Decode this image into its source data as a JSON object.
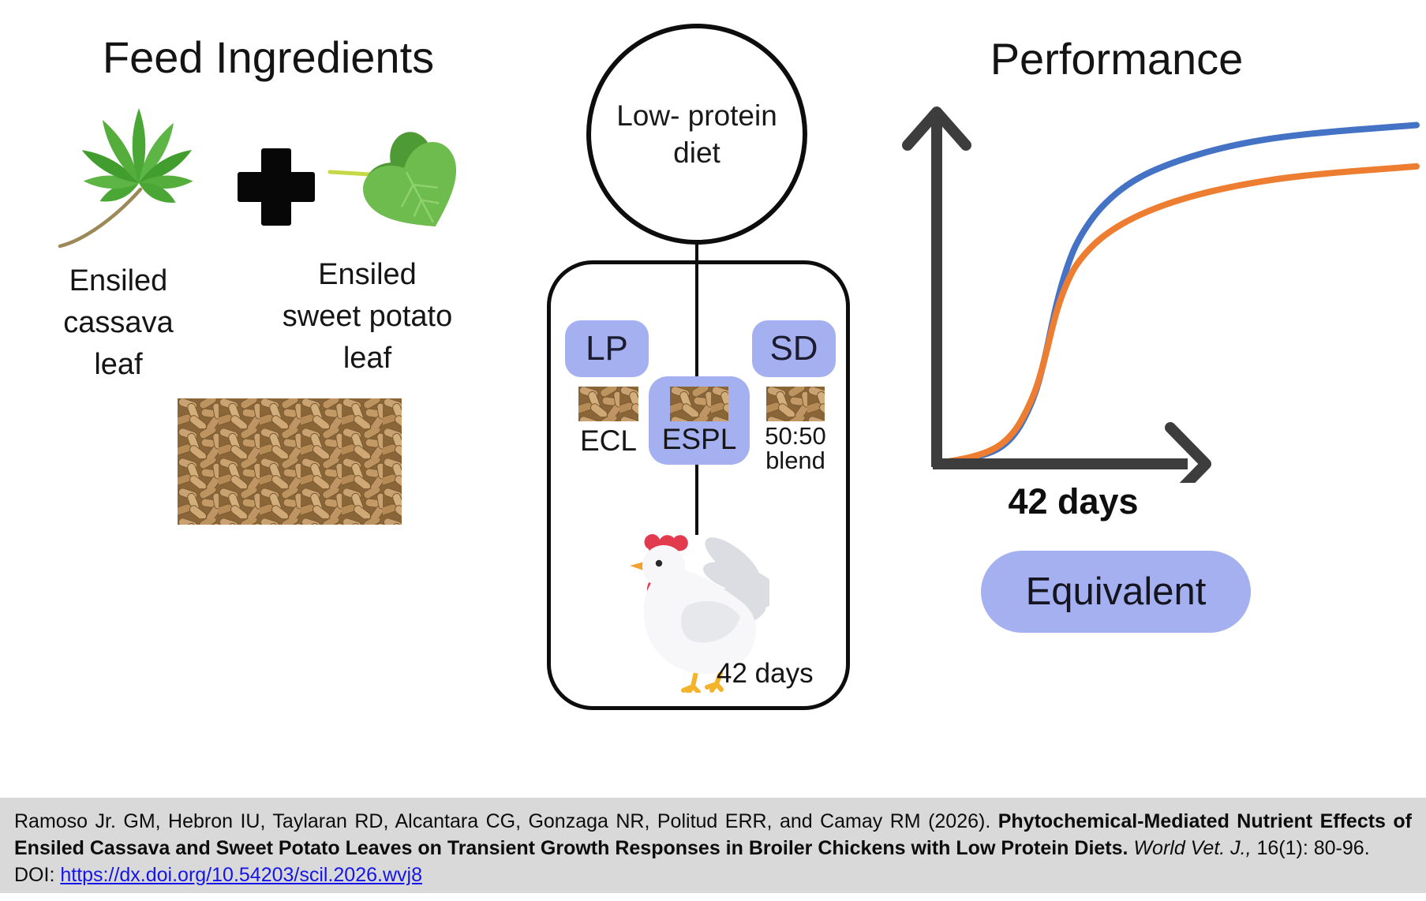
{
  "feed": {
    "title": "Feed Ingredients",
    "plus_sign": "+",
    "cassava_label_lines": [
      "Ensiled",
      "cassava",
      "leaf"
    ],
    "sweet_potato_label_lines": [
      "Ensiled",
      "sweet potato",
      "leaf"
    ]
  },
  "diet": {
    "circle_label_lines": [
      "Low- protein",
      "diet"
    ],
    "lp_badge": "LP",
    "sd_badge": "SD",
    "ecl_label": "ECL",
    "espl_label": "ESPL",
    "blend_label_lines": [
      "50:50",
      "blend"
    ],
    "duration_label": "42 days"
  },
  "performance": {
    "title": "Performance",
    "x_axis_label": "42 days",
    "result_badge": "Equivalent",
    "chart_data": {
      "type": "line",
      "title": "Performance",
      "xlabel": "42 days",
      "ylabel": "Performance (axis unlabeled)",
      "xlim": [
        0,
        42
      ],
      "ylim": [
        0,
        1
      ],
      "x": [
        0,
        3,
        6,
        8,
        9,
        10,
        11,
        12,
        14,
        17,
        21,
        26,
        32,
        42
      ],
      "series": [
        {
          "name": "blue-growth-curve",
          "color": "#4472c4",
          "values": [
            0.005,
            0.015,
            0.06,
            0.18,
            0.3,
            0.46,
            0.575,
            0.655,
            0.75,
            0.83,
            0.885,
            0.93,
            0.96,
            0.985
          ]
        },
        {
          "name": "orange-growth-curve",
          "color": "#ed7d31",
          "values": [
            0.005,
            0.018,
            0.07,
            0.19,
            0.3,
            0.44,
            0.53,
            0.59,
            0.66,
            0.72,
            0.77,
            0.81,
            0.84,
            0.865
          ]
        }
      ],
      "axis_ticks": "none",
      "legend": "none",
      "grid": false
    }
  },
  "citation": {
    "authors": "Ramoso Jr. GM, Hebron IU, Taylaran RD, Alcantara CG, Gonzaga NR, Politud ERR, and Camay RM (2026).",
    "title_bold": "Phytochemical-Mediated Nutrient Effects of Ensiled Cassava and Sweet Potato Leaves on Transient Growth Responses in Broiler Chickens with Low Protein Diets.",
    "journal_italic": "World Vet. J.,",
    "pages": "16(1): 80-96.",
    "doi_label": "DOI:",
    "doi_url": "https://dx.doi.org/10.54203/scil.2026.wvj8"
  },
  "colors": {
    "badge_purple": "#a5b0f0",
    "curve_blue": "#4472c4",
    "curve_orange": "#ed7d31",
    "axis_dark_gray": "#3d3d3d",
    "citation_bg": "#d9d9d9",
    "link_blue": "#1515e8",
    "leaf_green": "#55ad3c",
    "pellet_tan": "#c8a06d"
  }
}
